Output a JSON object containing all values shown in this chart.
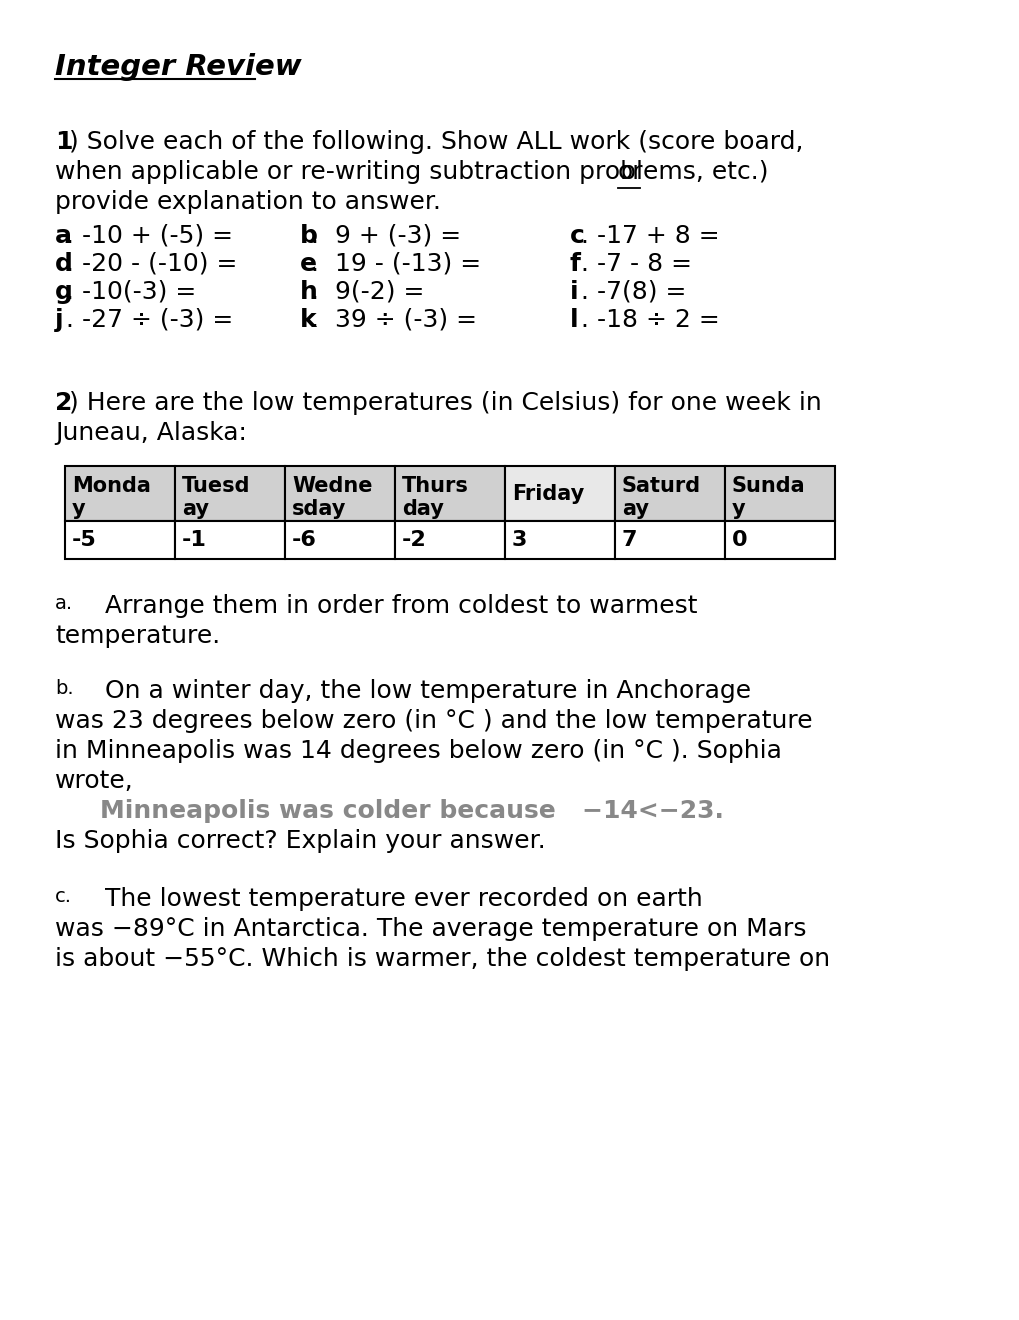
{
  "bg_color": "#ffffff",
  "title": "Integer Review",
  "table_headers_split": [
    [
      "Monda",
      "y"
    ],
    [
      "Tuesd",
      "ay"
    ],
    [
      "Wedne",
      "sday"
    ],
    [
      "Thurs",
      "day"
    ],
    [
      "Friday",
      ""
    ],
    [
      "Saturd",
      "ay"
    ],
    [
      "Sunda",
      "y"
    ]
  ],
  "table_values": [
    "-5",
    "-1",
    "-6",
    "-2",
    "3",
    "7",
    "0"
  ],
  "header_colors": [
    "#d0d0d0",
    "#d0d0d0",
    "#d0d0d0",
    "#d0d0d0",
    "#e8e8e8",
    "#d0d0d0",
    "#d0d0d0"
  ]
}
